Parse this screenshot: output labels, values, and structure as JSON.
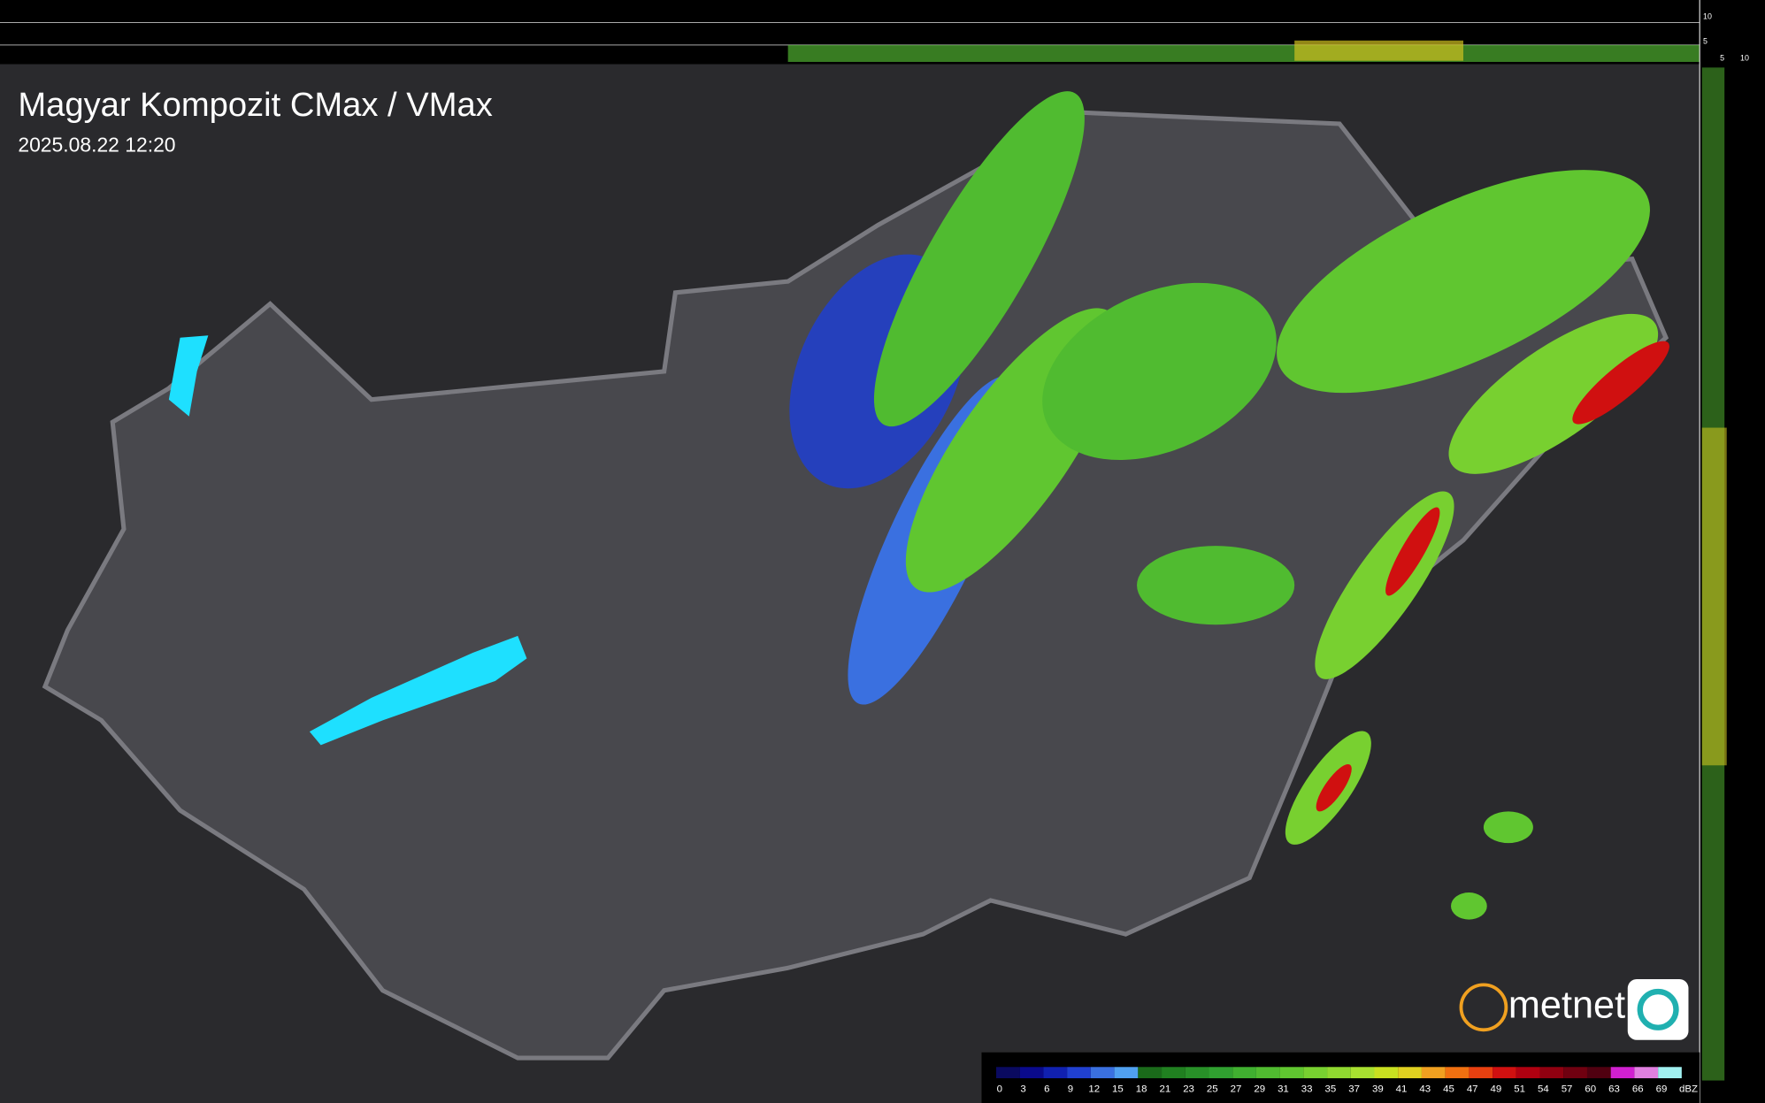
{
  "header": {
    "title": "Magyar Kompozit CMax / VMax",
    "timestamp": "2025.08.22 12:20"
  },
  "top_profile": {
    "labels": [
      "10",
      "5"
    ]
  },
  "side_profile": {
    "labels": [
      "5",
      "10"
    ]
  },
  "logo": {
    "text": "metnet"
  },
  "legend": {
    "labels": [
      "0",
      "3",
      "6",
      "9",
      "12",
      "15",
      "18",
      "21",
      "23",
      "25",
      "27",
      "29",
      "31",
      "33",
      "35",
      "37",
      "39",
      "41",
      "43",
      "45",
      "47",
      "49",
      "51",
      "54",
      "57",
      "60",
      "63",
      "66",
      "69"
    ],
    "unit": "dBZ",
    "colors": [
      "#0a0a60",
      "#0a0a8c",
      "#1020b0",
      "#2040d0",
      "#3a70e0",
      "#50a0f0",
      "#1a6a1a",
      "#208020",
      "#289028",
      "#30a030",
      "#40b030",
      "#50bb30",
      "#60c630",
      "#78d030",
      "#90d830",
      "#a8e030",
      "#c8e020",
      "#e0d020",
      "#f0a020",
      "#f07010",
      "#e84010",
      "#d01010",
      "#b00010",
      "#900010",
      "#700010",
      "#500010",
      "#d020d0",
      "#e080e0",
      "#a0f0f0"
    ]
  }
}
